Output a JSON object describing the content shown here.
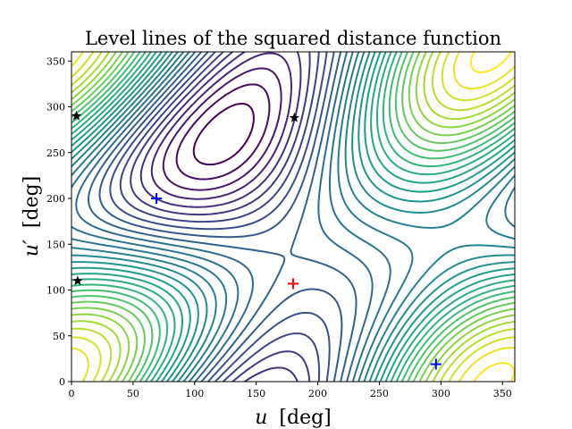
{
  "chart_data": {
    "type": "contour",
    "title": "Level lines of the squared distance function",
    "xlabel_var": "u",
    "xlabel_unit": "[deg]",
    "ylabel_var": "u′",
    "ylabel_unit": "[deg]",
    "xlim": [
      0,
      360
    ],
    "ylim": [
      0,
      360
    ],
    "xticks": [
      0,
      50,
      100,
      150,
      200,
      250,
      300,
      350
    ],
    "yticks": [
      0,
      50,
      100,
      150,
      200,
      250,
      300,
      350
    ],
    "grid": false,
    "colormap": "viridis",
    "colormap_stops": [
      "#440154",
      "#482878",
      "#3e4989",
      "#31688e",
      "#26828e",
      "#1f9e89",
      "#35b779",
      "#6ece58",
      "#b5de2b",
      "#fde725"
    ],
    "markers": [
      {
        "kind": "minimum",
        "symbol": "plus",
        "color": "#ff0000",
        "x": 180,
        "y": 107
      },
      {
        "kind": "maximum",
        "symbol": "plus",
        "color": "#0000ff",
        "x": 69,
        "y": 200
      },
      {
        "kind": "maximum",
        "symbol": "plus",
        "color": "#0000ff",
        "x": 296,
        "y": 19
      },
      {
        "kind": "saddle",
        "symbol": "star",
        "color": "#000000",
        "x": 181,
        "y": 288
      },
      {
        "kind": "saddle",
        "symbol": "star",
        "color": "#000000",
        "x": 4,
        "y": 290
      },
      {
        "kind": "saddle",
        "symbol": "star",
        "color": "#000000",
        "x": 5,
        "y": 110
      }
    ]
  }
}
